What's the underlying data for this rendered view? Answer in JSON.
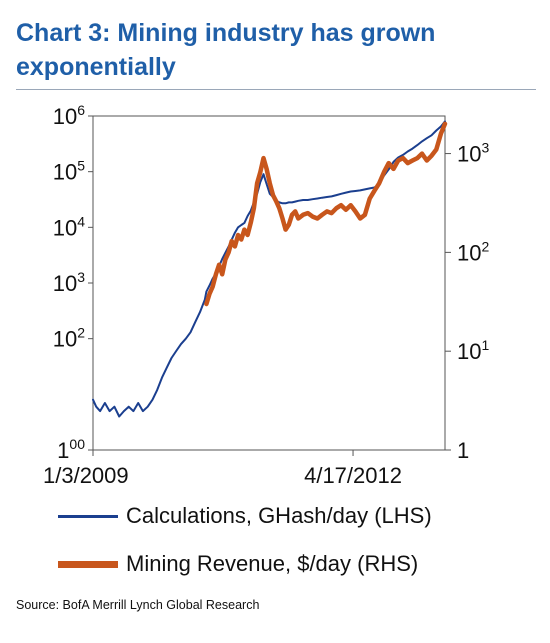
{
  "title": "Chart 3: Mining industry has grown exponentially",
  "source": "Source: BofA Merrill Lynch Global Research",
  "legend": [
    {
      "label": "Calculations, GHash/day (LHS)",
      "color": "#1b3f8f"
    },
    {
      "label": "Mining Revenue, $/day (RHS)",
      "color": "#c8561c"
    }
  ],
  "chart_data": {
    "type": "line",
    "x_tick_labels": [
      "1/3/2009",
      "4/17/2012"
    ],
    "x_ticks_year": [
      2009.01,
      2012.29
    ],
    "x_range_year": [
      2009.01,
      2013.45
    ],
    "left_axis": {
      "scale": "log",
      "range": [
        1,
        1000000
      ],
      "tick_values": [
        1,
        100,
        1000,
        10000,
        100000,
        1000000
      ],
      "tick_base": [
        "1",
        "10",
        "10",
        "10",
        "10",
        "10"
      ],
      "tick_exp": [
        "00",
        "2",
        "3",
        "4",
        "5",
        "6"
      ]
    },
    "right_axis": {
      "scale": "log",
      "range": [
        1,
        2400
      ],
      "tick_values": [
        1,
        10,
        100,
        1000
      ],
      "tick_base": [
        "1",
        "10",
        "10",
        "10"
      ],
      "tick_exp": [
        "",
        "1",
        "2",
        "3"
      ]
    },
    "series": [
      {
        "name": "Calculations, GHash/day (LHS)",
        "axis": "left",
        "color": "#1b3f8f",
        "x": [
          2009.01,
          2009.05,
          2009.1,
          2009.16,
          2009.22,
          2009.28,
          2009.34,
          2009.4,
          2009.46,
          2009.52,
          2009.58,
          2009.64,
          2009.7,
          2009.76,
          2009.82,
          2009.88,
          2009.94,
          2010.0,
          2010.06,
          2010.12,
          2010.18,
          2010.24,
          2010.3,
          2010.36,
          2010.42,
          2010.44,
          2010.48,
          2010.52,
          2010.56,
          2010.6,
          2010.64,
          2010.68,
          2010.72,
          2010.76,
          2010.8,
          2010.84,
          2010.88,
          2010.92,
          2010.96,
          2011.0,
          2011.04,
          2011.08,
          2011.12,
          2011.16,
          2011.2,
          2011.24,
          2011.28,
          2011.32,
          2011.36,
          2011.4,
          2011.44,
          2011.48,
          2011.52,
          2011.56,
          2011.6,
          2011.66,
          2011.72,
          2011.78,
          2011.84,
          2011.9,
          2011.96,
          2012.02,
          2012.08,
          2012.14,
          2012.2,
          2012.26,
          2012.32,
          2012.38,
          2012.44,
          2012.5,
          2012.56,
          2012.62,
          2012.68,
          2012.74,
          2012.8,
          2012.86,
          2012.92,
          2012.98,
          2013.04,
          2013.1,
          2013.16,
          2013.22,
          2013.28,
          2013.34,
          2013.4,
          2013.45
        ],
        "y": [
          8,
          6,
          5,
          7,
          5,
          6,
          4,
          5,
          6,
          5,
          7,
          5,
          6,
          8,
          12,
          20,
          30,
          45,
          60,
          80,
          100,
          130,
          200,
          300,
          500,
          700,
          900,
          1200,
          1500,
          2000,
          2700,
          3500,
          4500,
          6000,
          8000,
          10000,
          11000,
          12000,
          16000,
          20000,
          28000,
          40000,
          65000,
          90000,
          60000,
          40000,
          35000,
          30000,
          28000,
          27000,
          27000,
          28000,
          28000,
          29000,
          30000,
          31000,
          31000,
          32000,
          33000,
          34000,
          35000,
          36000,
          38000,
          40000,
          42000,
          44000,
          45000,
          46000,
          48000,
          50000,
          52000,
          60000,
          85000,
          110000,
          150000,
          180000,
          200000,
          230000,
          260000,
          300000,
          350000,
          400000,
          450000,
          550000,
          650000,
          800000
        ]
      },
      {
        "name": "Mining Revenue, $/day (RHS)",
        "axis": "right",
        "color": "#c8561c",
        "x": [
          2010.44,
          2010.48,
          2010.52,
          2010.56,
          2010.6,
          2010.64,
          2010.68,
          2010.72,
          2010.76,
          2010.8,
          2010.84,
          2010.88,
          2010.92,
          2010.96,
          2011.0,
          2011.04,
          2011.08,
          2011.12,
          2011.16,
          2011.2,
          2011.24,
          2011.28,
          2011.32,
          2011.36,
          2011.4,
          2011.44,
          2011.48,
          2011.52,
          2011.56,
          2011.6,
          2011.66,
          2011.72,
          2011.78,
          2011.84,
          2011.9,
          2011.96,
          2012.02,
          2012.08,
          2012.14,
          2012.2,
          2012.26,
          2012.32,
          2012.38,
          2012.44,
          2012.5,
          2012.56,
          2012.62,
          2012.68,
          2012.74,
          2012.8,
          2012.86,
          2012.92,
          2012.98,
          2013.04,
          2013.1,
          2013.16,
          2013.22,
          2013.28,
          2013.34,
          2013.4,
          2013.45
        ],
        "y": [
          30,
          38,
          45,
          60,
          75,
          60,
          85,
          100,
          130,
          115,
          150,
          135,
          170,
          150,
          200,
          280,
          500,
          650,
          900,
          700,
          500,
          380,
          330,
          280,
          220,
          170,
          190,
          240,
          260,
          220,
          240,
          250,
          230,
          220,
          240,
          260,
          250,
          280,
          300,
          270,
          300,
          260,
          220,
          240,
          350,
          420,
          500,
          650,
          800,
          700,
          850,
          900,
          800,
          850,
          900,
          1000,
          850,
          950,
          1100,
          1600,
          2000
        ]
      }
    ]
  }
}
